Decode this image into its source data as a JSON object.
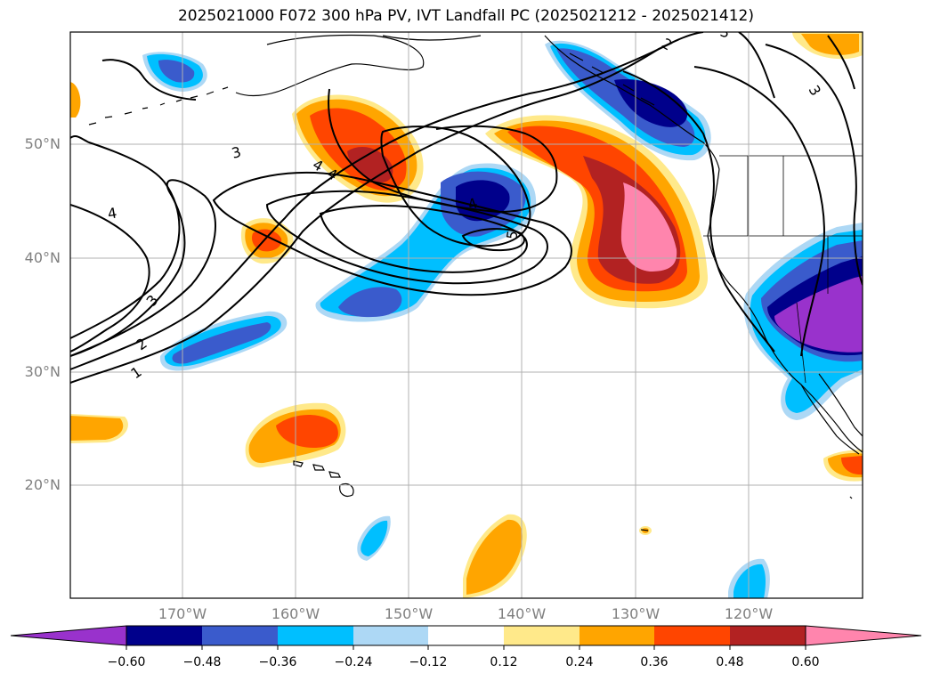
{
  "title": "2025021000 F072 300 hPa PV, IVT Landfall PC (2025021212 - 2025021412)",
  "lat_labels": [
    "50°N",
    "40°N",
    "30°N",
    "20°N"
  ],
  "lon_labels": [
    "170°W",
    "160°W",
    "150°W",
    "140°W",
    "130°W",
    "120°W"
  ],
  "contour_labels": [
    "1",
    "2",
    "3",
    "3",
    "4",
    "4",
    "4",
    "4",
    "5",
    "2",
    "3",
    "3"
  ],
  "colorbar": {
    "ticks": [
      "−0.60",
      "−0.48",
      "−0.36",
      "−0.24",
      "−0.12",
      "0.12",
      "0.24",
      "0.36",
      "0.48",
      "0.60"
    ],
    "colors": [
      "#9932cc",
      "#00008b",
      "#3a5bcc",
      "#00bfff",
      "#add8f5",
      "#ffffff",
      "#ffe98a",
      "#ffa500",
      "#ff4500",
      "#b22222",
      "#ff85ad"
    ]
  }
}
